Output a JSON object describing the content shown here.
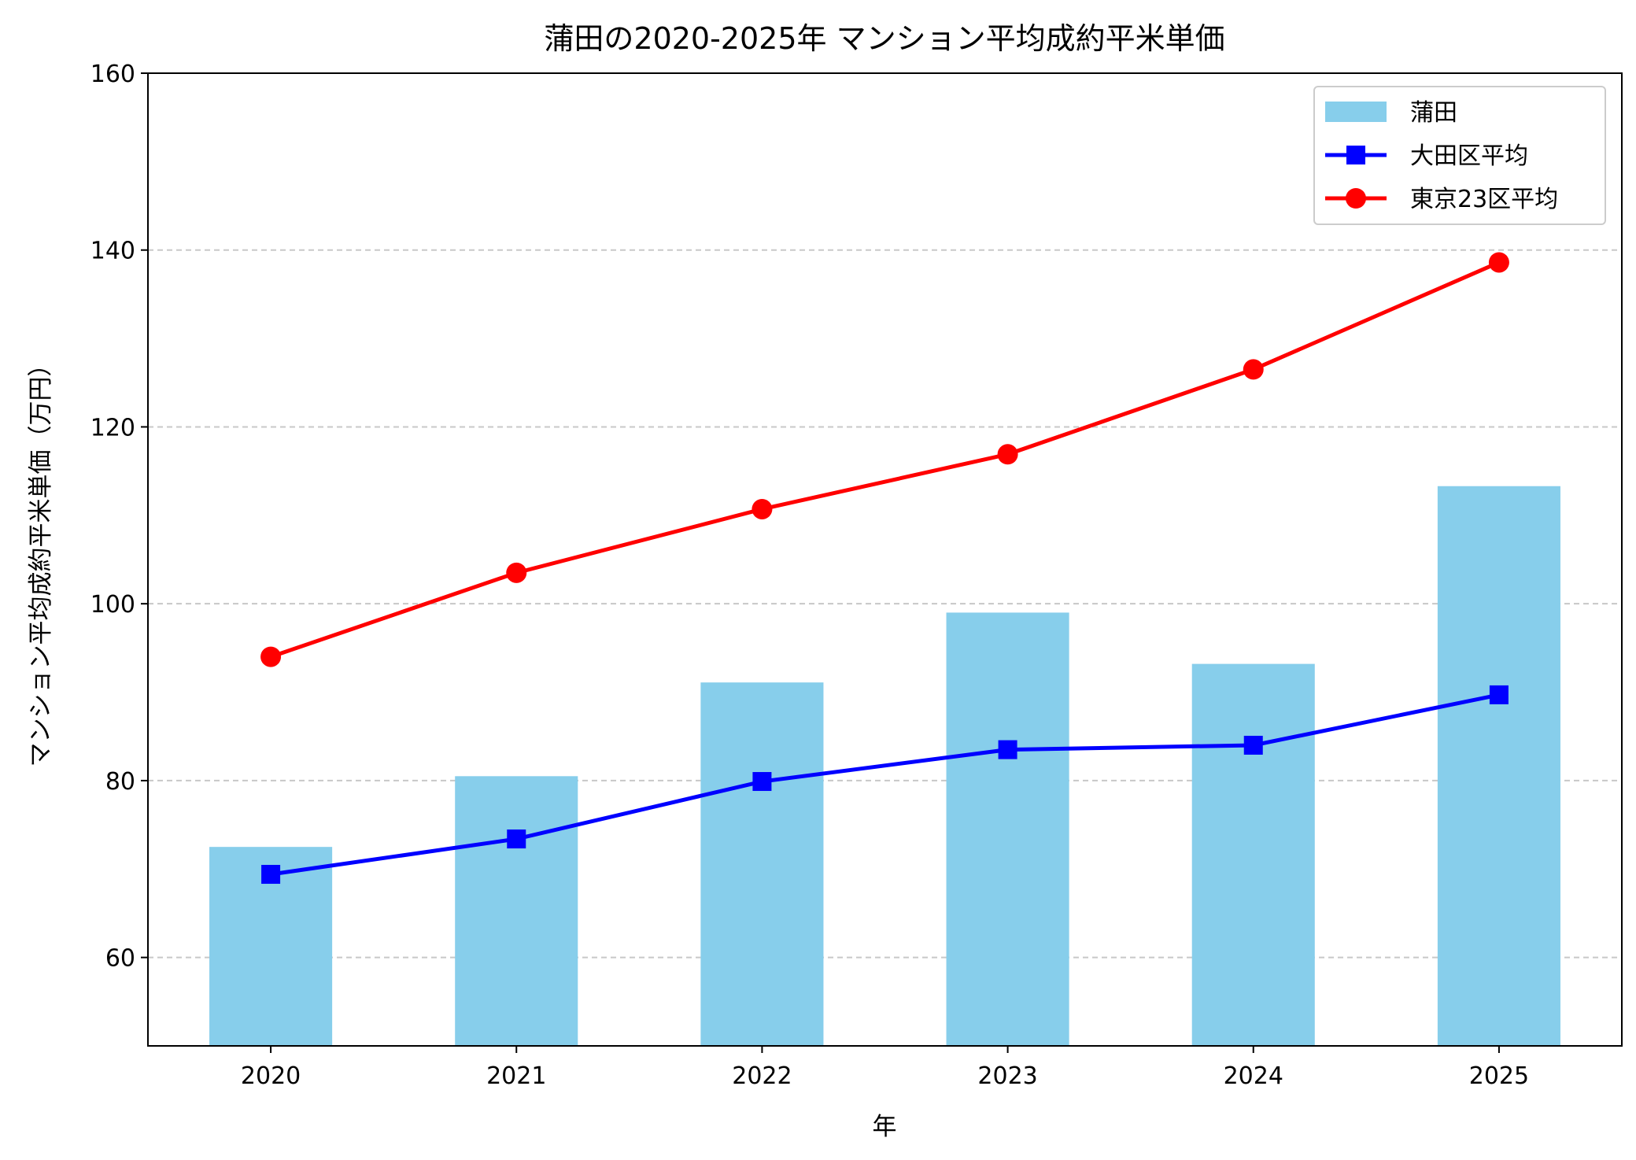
{
  "chart_data": {
    "type": "bar+line",
    "title": "蒲田の2020-2025年 マンション平均成約平米単価",
    "xlabel": "年",
    "ylabel": "マンション平均成約平米単価（万円）",
    "categories": [
      "2020",
      "2021",
      "2022",
      "2023",
      "2024",
      "2025"
    ],
    "ylim": [
      50,
      160
    ],
    "yticks": [
      60,
      80,
      100,
      120,
      140,
      160
    ],
    "grid": "y-dashed",
    "legend_position": "top-right",
    "series": [
      {
        "name": "蒲田",
        "type": "bar",
        "color": "#87ceeb",
        "values": [
          72.5,
          80.5,
          91.1,
          99.0,
          93.2,
          113.3
        ]
      },
      {
        "name": "大田区平均",
        "type": "line",
        "marker": "square",
        "color": "#0000ff",
        "values": [
          69.4,
          73.4,
          79.9,
          83.5,
          84.0,
          89.7
        ]
      },
      {
        "name": "東京23区平均",
        "type": "line",
        "marker": "circle",
        "color": "#ff0000",
        "values": [
          94.0,
          103.5,
          110.7,
          116.9,
          126.5,
          138.6
        ]
      }
    ]
  }
}
